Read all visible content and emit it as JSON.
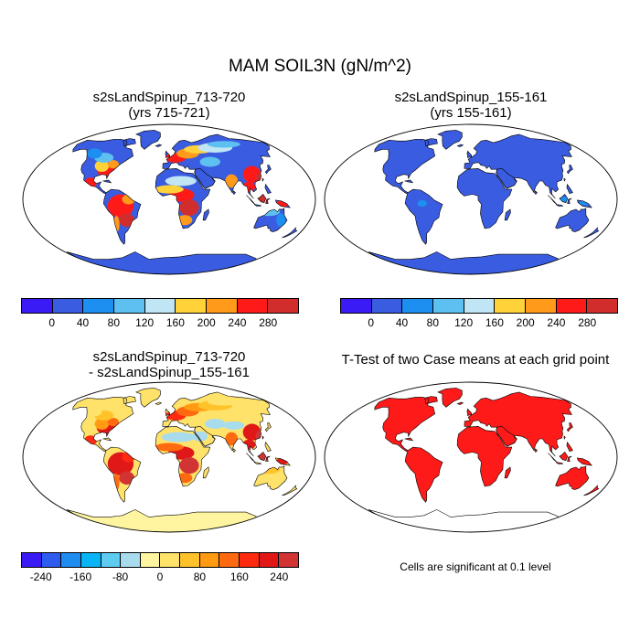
{
  "figure": {
    "title": "MAM SOIL3N (gN/m^2)"
  },
  "panels": [
    {
      "title": "s2sLandSpinup_713-720\n(yrs 715-721)",
      "style": "warm_mixed"
    },
    {
      "title": "s2sLandSpinup_155-161\n(yrs 155-161)",
      "style": "uniform_low"
    },
    {
      "title": "s2sLandSpinup_713-720\n- s2sLandSpinup_155-161",
      "style": "difference"
    },
    {
      "title": "T-Test of two Case means at each grid point",
      "style": "significance"
    }
  ],
  "colorbars": {
    "absolute": {
      "colors": [
        "#3b1bf5",
        "#3a5ce0",
        "#1d8ff0",
        "#5ec0f0",
        "#c0e6f5",
        "#ffd23a",
        "#ff9a1a",
        "#ff1a1a",
        "#d22d2d"
      ],
      "labels": [
        "0",
        "40",
        "80",
        "120",
        "160",
        "200",
        "240",
        "280"
      ]
    },
    "difference": {
      "colors": [
        "#3b1bf5",
        "#2e5cf0",
        "#1f8cf0",
        "#08b4f5",
        "#5ecbf0",
        "#a8dcec",
        "#fff5a0",
        "#ffe26a",
        "#ffc22a",
        "#ff9a12",
        "#ff6a10",
        "#ff2a10",
        "#e01818",
        "#d23434"
      ],
      "labels": [
        "-240",
        "-160",
        "-80",
        "0",
        "80",
        "160",
        "240"
      ]
    }
  },
  "note": "Cells are significant at 0.1 level",
  "colors": {
    "ocean": "#ffffff",
    "outline": "#000000",
    "sig_red": "#ff1a1a"
  }
}
